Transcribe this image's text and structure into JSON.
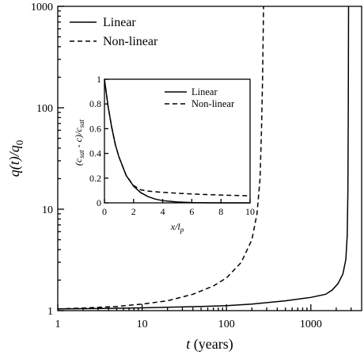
{
  "chart_data": [
    {
      "type": "line",
      "log_x": true,
      "log_y": true,
      "xlim": [
        1,
        4000
      ],
      "ylim": [
        1,
        1000
      ],
      "x_ticks": [
        1,
        10,
        100,
        1000
      ],
      "x_tick_labels": [
        "1",
        "10",
        "100",
        "1000"
      ],
      "y_ticks": [
        1,
        10,
        100,
        1000
      ],
      "y_tick_labels": [
        "1",
        "10",
        "100",
        "1000"
      ],
      "xlabel": {
        "var": "t",
        "unit": " (years)"
      },
      "ylabel": {
        "num": "q(t)/q",
        "sub": "0"
      },
      "legend_position": "top-left",
      "series": [
        {
          "name": "Linear",
          "dash": false,
          "x": [
            1,
            2,
            5,
            10,
            20,
            50,
            100,
            200,
            500,
            1000,
            1500,
            1800,
            2100,
            2400,
            2600,
            2700,
            2750,
            2780,
            2800
          ],
          "y": [
            1.04,
            1.045,
            1.055,
            1.065,
            1.08,
            1.1,
            1.12,
            1.16,
            1.25,
            1.35,
            1.45,
            1.6,
            1.85,
            2.3,
            3.2,
            5.5,
            15,
            100,
            1000
          ]
        },
        {
          "name": "Non-linear",
          "dash": true,
          "x": [
            1,
            2,
            5,
            10,
            20,
            40,
            70,
            100,
            150,
            200,
            230,
            250,
            260,
            268,
            272,
            275
          ],
          "y": [
            1.04,
            1.06,
            1.1,
            1.16,
            1.25,
            1.45,
            1.75,
            2.1,
            3.0,
            5.0,
            9.0,
            20,
            60,
            200,
            500,
            1000
          ]
        }
      ]
    },
    {
      "type": "line",
      "inset": true,
      "xlim": [
        0,
        10
      ],
      "ylim": [
        0,
        1
      ],
      "x_ticks": [
        0,
        2,
        4,
        6,
        8,
        10
      ],
      "x_tick_labels": [
        "0",
        "2",
        "4",
        "6",
        "8",
        "10"
      ],
      "y_ticks": [
        0,
        0.2,
        0.4,
        0.6,
        0.8,
        1
      ],
      "y_tick_labels": [
        "0",
        "0.2",
        "0.4",
        "0.6",
        "0.8",
        "1"
      ],
      "xlabel": {
        "main": "x/l",
        "sub": "p"
      },
      "ylabel": {
        "p1": "(c",
        "s1": "sat",
        "p2": " - c)/c",
        "s2": "sat"
      },
      "legend_position": "top-right",
      "series": [
        {
          "name": "Linear",
          "dash": false,
          "x": [
            0,
            0.25,
            0.5,
            0.75,
            1,
            1.5,
            2,
            2.5,
            3,
            3.5,
            4,
            5,
            6,
            7,
            8,
            9,
            10
          ],
          "y": [
            1,
            0.78,
            0.61,
            0.47,
            0.37,
            0.22,
            0.135,
            0.082,
            0.05,
            0.03,
            0.018,
            0.007,
            0.0025,
            0.001,
            0.0003,
            0.0001,
            0.0001
          ]
        },
        {
          "name": "Non-linear",
          "dash": true,
          "x": [
            0,
            0.25,
            0.5,
            0.75,
            1,
            1.5,
            2,
            2.5,
            3,
            4,
            5,
            6,
            7,
            8,
            9,
            10
          ],
          "y": [
            1,
            0.78,
            0.61,
            0.47,
            0.37,
            0.22,
            0.14,
            0.105,
            0.095,
            0.085,
            0.078,
            0.072,
            0.067,
            0.063,
            0.06,
            0.057
          ]
        }
      ]
    }
  ]
}
